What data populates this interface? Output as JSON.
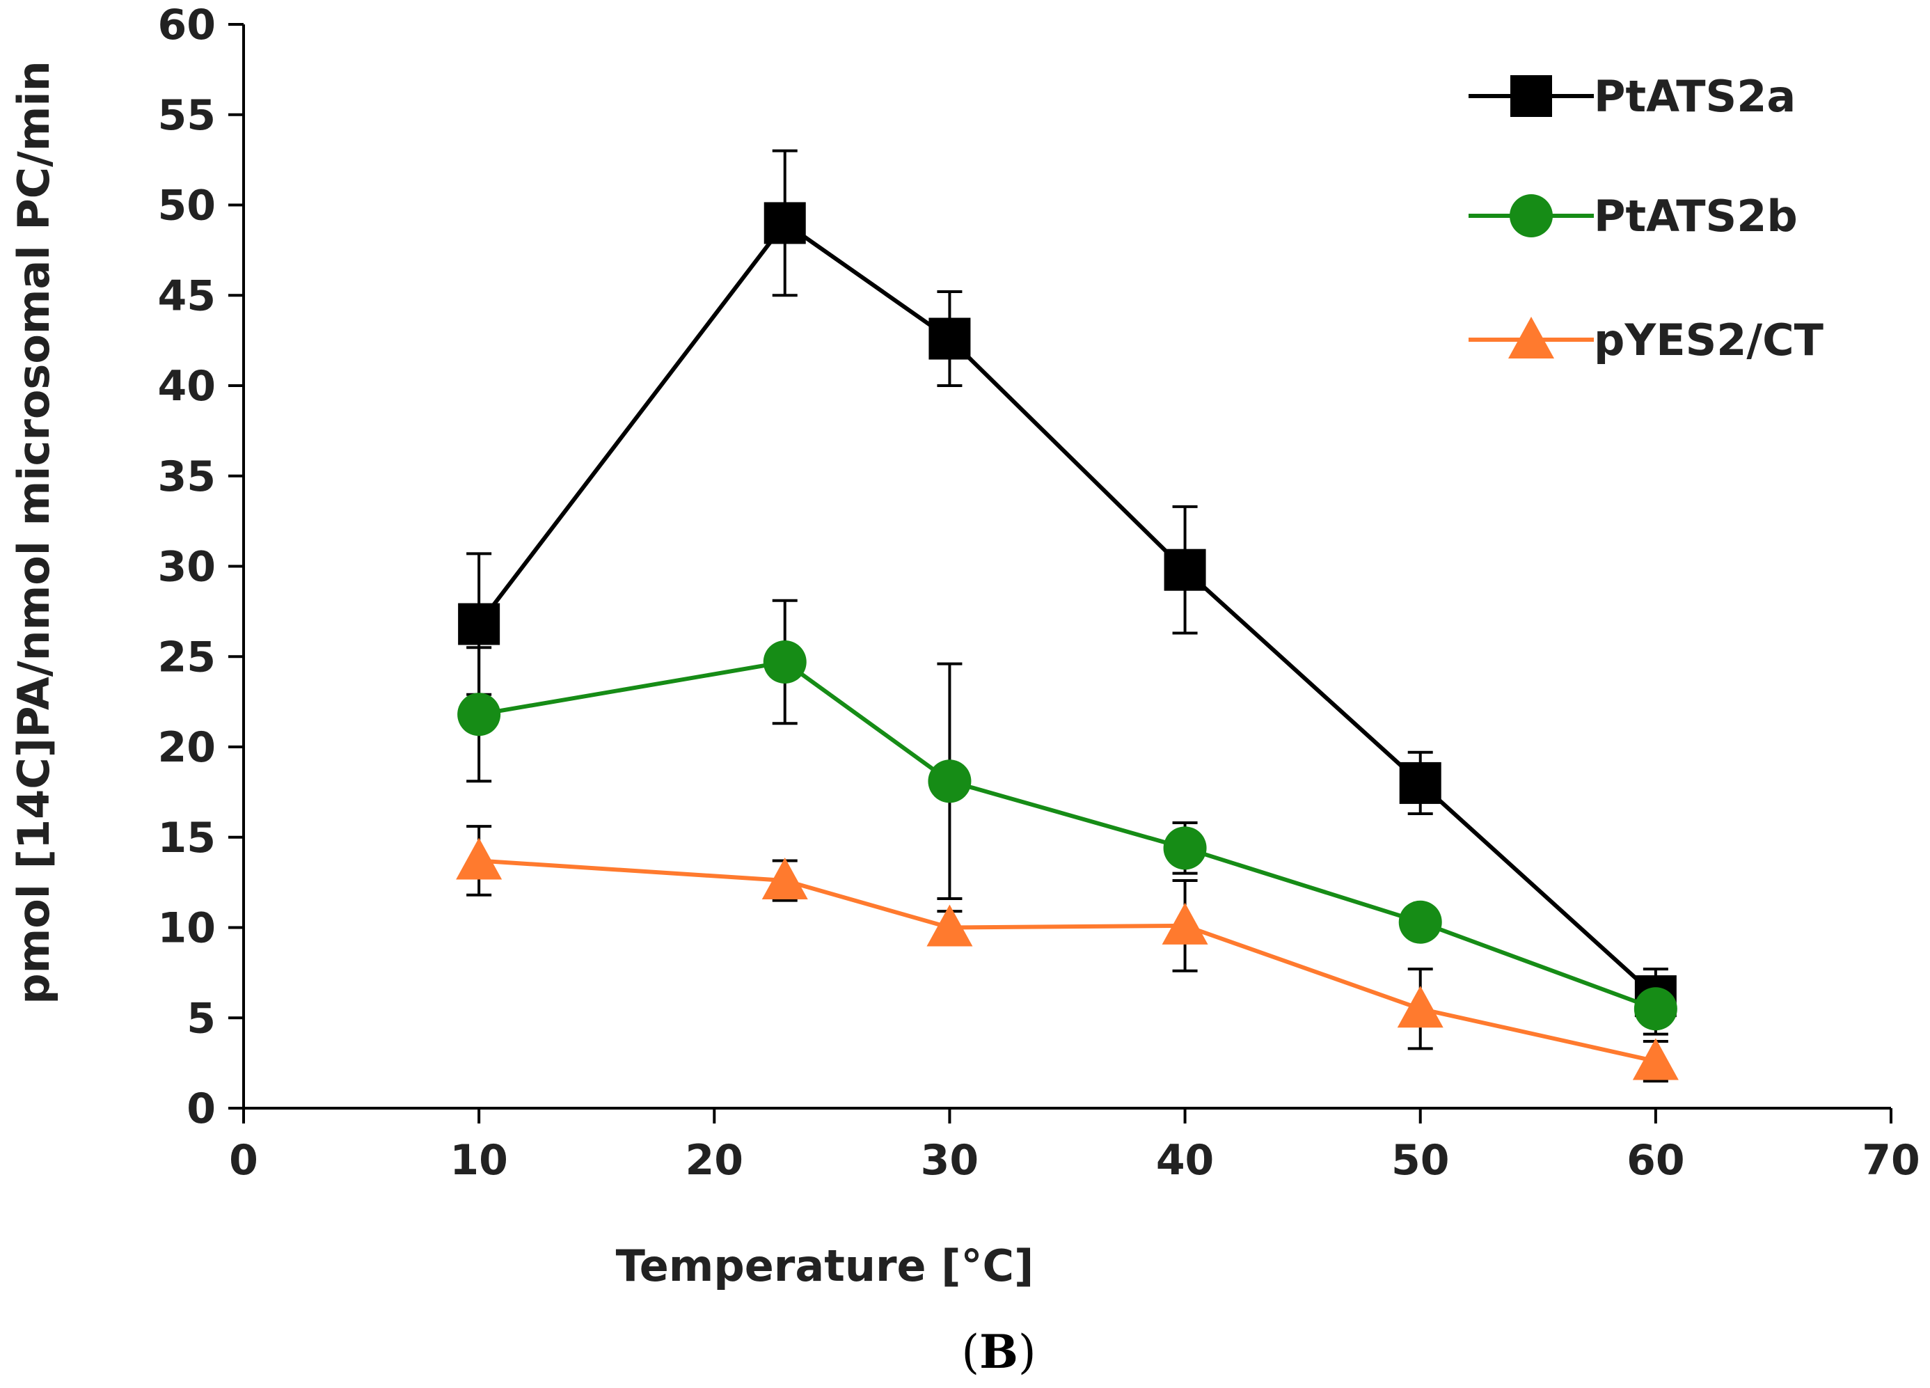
{
  "chart_data": {
    "type": "line",
    "title": "",
    "panel_label": "(B)",
    "panel_label_parts": {
      "open": "(",
      "letter": "B",
      "close": ")"
    },
    "xlabel": "Temperature [°C]",
    "ylabel": "pmol [14C]PA/nmol microsomal PC/min",
    "xlim": [
      0,
      70
    ],
    "ylim": [
      0,
      60
    ],
    "xticks": [
      0,
      10,
      20,
      30,
      40,
      50,
      60,
      70
    ],
    "yticks": [
      0,
      5,
      10,
      15,
      20,
      25,
      30,
      35,
      40,
      45,
      50,
      55,
      60
    ],
    "grid": false,
    "legend_position": "top-right",
    "x": [
      10,
      23,
      30,
      40,
      50,
      60
    ],
    "series": [
      {
        "name": "PtATS2a",
        "color": "#000000",
        "marker": "square",
        "values": [
          26.8,
          49.0,
          42.6,
          29.8,
          18.0,
          6.2
        ],
        "errors": [
          3.9,
          4.0,
          2.6,
          3.5,
          1.7,
          1.5
        ]
      },
      {
        "name": "PtATS2b",
        "color": "#168C16",
        "marker": "circle",
        "values": [
          21.8,
          24.7,
          18.1,
          14.4,
          10.3,
          5.5
        ],
        "errors": [
          3.7,
          3.4,
          6.5,
          1.4,
          0.6,
          1.4
        ]
      },
      {
        "name": "pYES2/CT",
        "color": "#FF7A2E",
        "marker": "triangle",
        "values": [
          13.7,
          12.6,
          10.0,
          10.1,
          5.5,
          2.6
        ],
        "errors": [
          1.9,
          1.1,
          0.9,
          2.5,
          2.2,
          1.1
        ]
      }
    ]
  }
}
